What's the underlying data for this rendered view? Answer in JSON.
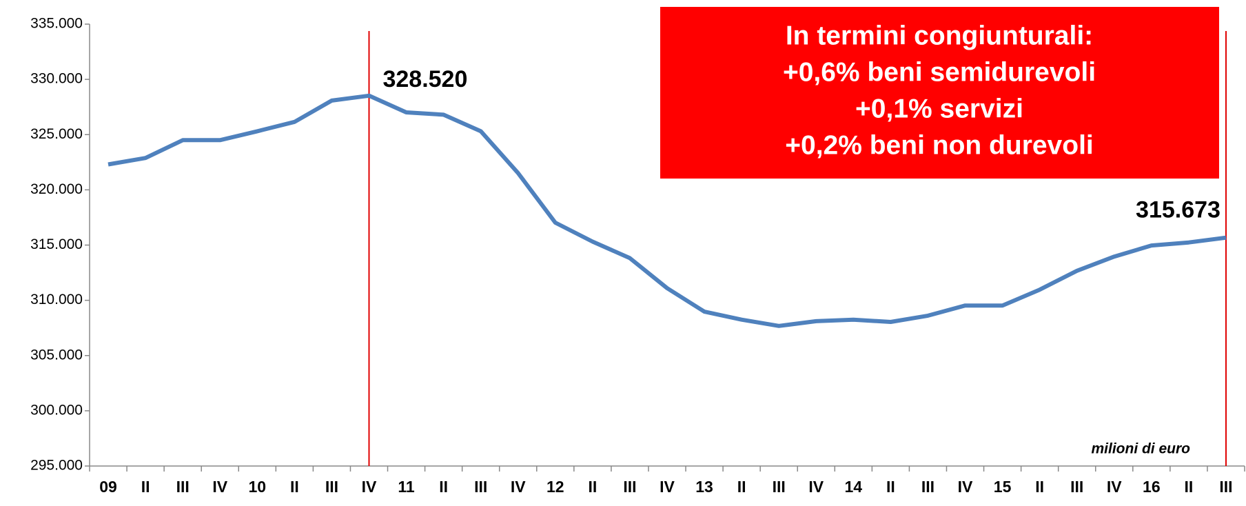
{
  "chart_data": {
    "type": "line",
    "categories": [
      "09",
      "II",
      "III",
      "IV",
      "10",
      "II",
      "III",
      "IV",
      "11",
      "II",
      "III",
      "IV",
      "12",
      "II",
      "III",
      "IV",
      "13",
      "II",
      "III",
      "IV",
      "14",
      "II",
      "III",
      "IV",
      "15",
      "II",
      "III",
      "IV",
      "16",
      "II",
      "III"
    ],
    "values": [
      322300,
      322880,
      324500,
      324500,
      325300,
      326150,
      328080,
      328520,
      327010,
      326800,
      325300,
      321520,
      317030,
      315310,
      313820,
      311100,
      308970,
      308250,
      307680,
      308110,
      308250,
      308040,
      308610,
      309530,
      309530,
      310960,
      312670,
      313960,
      314960,
      315240,
      315673
    ],
    "value_labels": [
      null,
      null,
      null,
      null,
      null,
      null,
      null,
      "328.520",
      null,
      null,
      null,
      null,
      null,
      null,
      null,
      null,
      null,
      null,
      null,
      null,
      null,
      null,
      null,
      null,
      null,
      null,
      null,
      null,
      null,
      null,
      "315.673"
    ],
    "color": "#4f81bd",
    "marker_color": "#e00000",
    "ylim": [
      295000,
      335000
    ],
    "yticks": [
      {
        "value": 295000,
        "label": "295.000"
      },
      {
        "value": 300000,
        "label": "300.000"
      },
      {
        "value": 305000,
        "label": "305.000"
      },
      {
        "value": 310000,
        "label": "310.000"
      },
      {
        "value": 315000,
        "label": "315.000"
      },
      {
        "value": 320000,
        "label": "320.000"
      },
      {
        "value": 325000,
        "label": "325.000"
      },
      {
        "value": 330000,
        "label": "330.000"
      },
      {
        "value": 335000,
        "label": "335.000"
      }
    ],
    "unit_note": "milioni di euro",
    "box_lines": [
      "In termini congiunturali:",
      "+0,6% beni semidurevoli",
      "+0,1% servizi",
      "+0,2% beni non durevoli"
    ],
    "box_color": "#ff0000"
  }
}
